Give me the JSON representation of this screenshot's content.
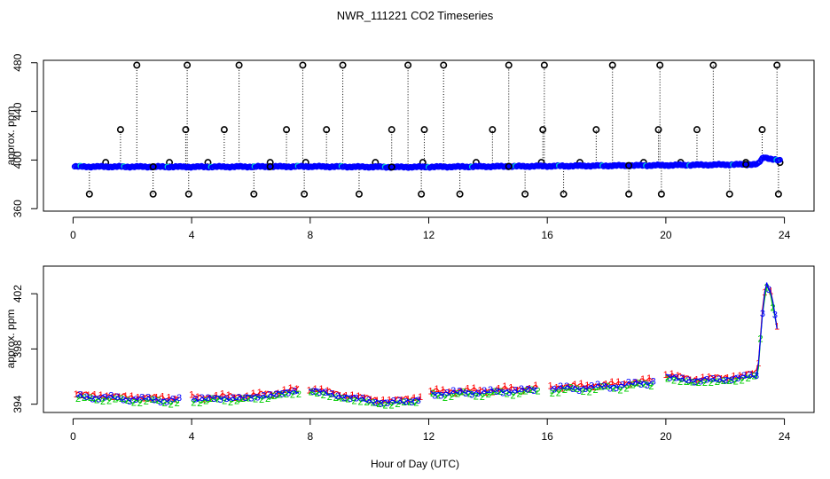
{
  "chart_data": {
    "title": "NWR_111221  CO2 Timeseries",
    "xlabel": "Hour of Day (UTC)",
    "xticks": [
      0,
      4,
      8,
      12,
      16,
      20,
      24
    ],
    "xlim": [
      -1,
      25
    ],
    "colors": {
      "c1": "#ff0000",
      "c2": "#00cc00",
      "c3": "#0000ff",
      "flag": "#000000",
      "alt": "#00cccc"
    },
    "panels": [
      {
        "type": "scatter",
        "ylabel": "approx. ppm",
        "ylim": [
          358,
          482
        ],
        "yticks": [
          360,
          400,
          440,
          480
        ],
        "baseline": [
          [
            0,
            394.6
          ],
          [
            4,
            394.4
          ],
          [
            8,
            394.7
          ],
          [
            11,
            394.2
          ],
          [
            16,
            395.0
          ],
          [
            19.5,
            395.6
          ],
          [
            23.1,
            396.5
          ],
          [
            23.3,
            402.5
          ],
          [
            23.8,
            399.5
          ]
        ],
        "flag_hours": [
          0.55,
          1.1,
          1.6,
          2.15,
          2.7,
          3.25,
          3.8,
          3.85,
          3.9,
          4.55,
          5.1,
          5.6,
          6.1,
          6.65,
          7.2,
          7.75,
          7.8,
          7.85,
          8.55,
          9.1,
          9.65,
          10.2,
          10.75,
          11.3,
          11.75,
          11.8,
          11.85,
          12.5,
          13.05,
          13.6,
          14.15,
          14.7,
          15.25,
          15.8,
          15.85,
          15.9,
          16.55,
          17.1,
          17.65,
          18.2,
          18.75,
          19.25,
          19.75,
          19.8,
          19.85,
          20.5,
          21.05,
          21.6,
          22.15,
          22.7,
          23.25,
          23.75,
          23.8,
          23.85
        ],
        "flag_levels": [
          372,
          398,
          425,
          478
        ],
        "axes_labels": {
          "yticks_text": [
            "360",
            "400",
            "440",
            "480"
          ]
        }
      },
      {
        "type": "line",
        "ylabel": "approx. ppm",
        "ylim": [
          393.4,
          404.0
        ],
        "yticks": [
          394,
          398,
          402
        ],
        "gaps": [
          3.8,
          7.8,
          11.9,
          15.9,
          19.8
        ],
        "series": [
          {
            "name": "1",
            "offset": 0.15
          },
          {
            "name": "2",
            "offset": -0.15
          },
          {
            "name": "3",
            "offset": 0.0
          }
        ],
        "profile": [
          [
            0,
            394.6
          ],
          [
            2,
            394.4
          ],
          [
            3.7,
            394.3
          ],
          [
            4,
            394.4
          ],
          [
            6,
            394.5
          ],
          [
            7.7,
            395.0
          ],
          [
            8.1,
            395.0
          ],
          [
            9,
            394.6
          ],
          [
            10.6,
            394.1
          ],
          [
            11.8,
            394.4
          ],
          [
            12,
            394.8
          ],
          [
            14,
            394.9
          ],
          [
            15.8,
            395.1
          ],
          [
            16,
            395.1
          ],
          [
            18,
            395.3
          ],
          [
            19.5,
            395.6
          ],
          [
            19.75,
            396.1
          ],
          [
            20,
            396.0
          ],
          [
            21,
            395.7
          ],
          [
            22.5,
            395.9
          ],
          [
            23.1,
            396.2
          ],
          [
            23.25,
            400.5
          ],
          [
            23.38,
            402.8
          ],
          [
            23.55,
            402.0
          ],
          [
            23.75,
            399.5
          ]
        ]
      }
    ]
  }
}
